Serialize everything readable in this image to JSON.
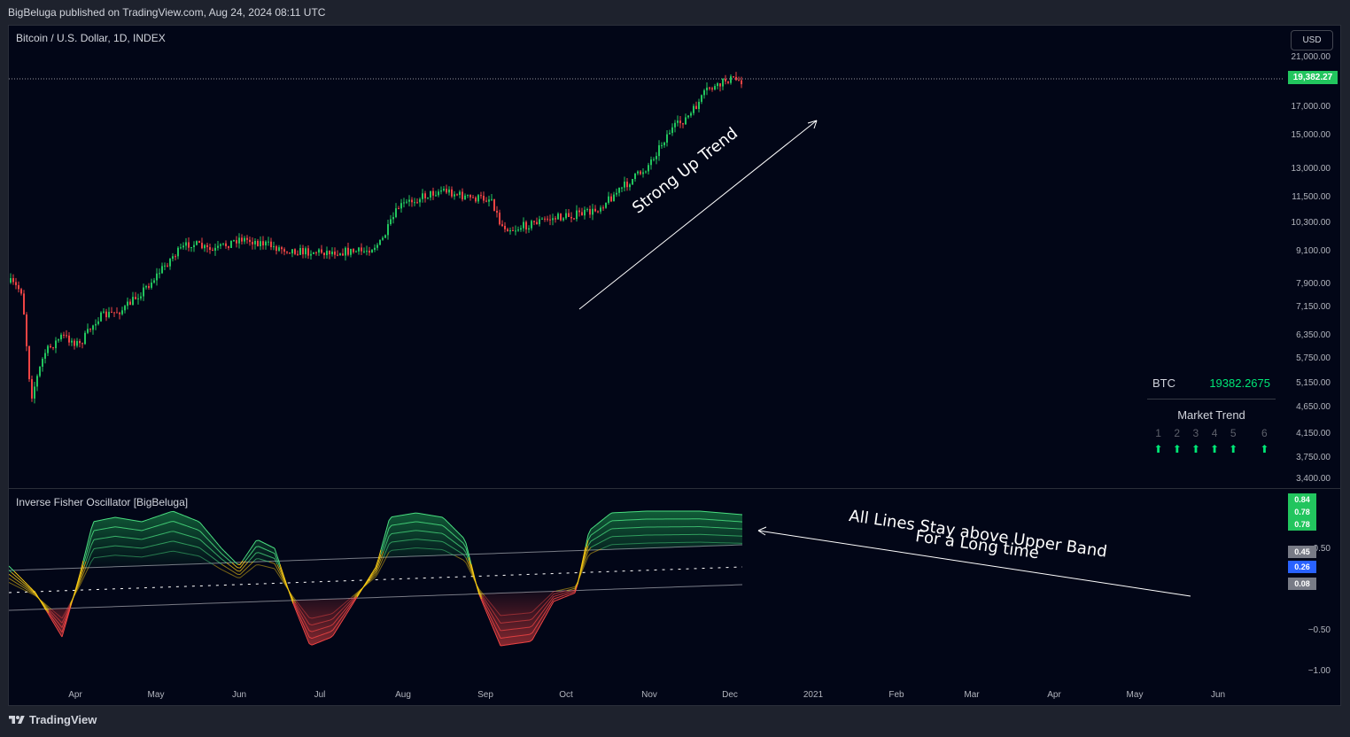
{
  "publisher": "BigBeluga published on TradingView.com, Aug 24, 2024 08:11 UTC",
  "symbol_title": "Bitcoin / U.S. Dollar, 1D, INDEX",
  "currency": "USD",
  "last_price_tag": "19,382.27",
  "price_axis": [
    "21,000.00",
    "17,000.00",
    "15,000.00",
    "13,000.00",
    "11,500.00",
    "10,300.00",
    "9,100.00",
    "7,900.00",
    "7,150.00",
    "6,350.00",
    "5,750.00",
    "5,150.00",
    "4,650.00",
    "4,150.00",
    "3,750.00",
    "3,400.00"
  ],
  "oscillator": {
    "title": "Inverse Fisher Oscillator [BigBeluga]",
    "axis": [
      "0.50",
      "−0.50",
      "−1.00"
    ],
    "tags": [
      {
        "value": "0.84",
        "color": "#22c55e"
      },
      {
        "value": "0.78",
        "color": "#22c55e"
      },
      {
        "value": "0.78",
        "color": "#22c55e"
      },
      {
        "value": "0.45",
        "color": "#787b86"
      },
      {
        "value": "0.26",
        "color": "#2962ff"
      },
      {
        "value": "0.08",
        "color": "#787b86"
      }
    ]
  },
  "time_axis": [
    "Apr",
    "May",
    "Jun",
    "Jul",
    "Aug",
    "Sep",
    "Oct",
    "Nov",
    "Dec",
    "2021",
    "Feb",
    "Mar",
    "Apr",
    "May",
    "Jun"
  ],
  "annotations": {
    "trend": "Strong Up Trend",
    "bands_line1": "All Lines Stay above Upper Band",
    "bands_line2": "For a Long time"
  },
  "btc_panel": {
    "label": "BTC",
    "value": "19382.2675",
    "market_trend_title": "Market Trend",
    "columns": [
      "1",
      "2",
      "3",
      "4",
      "5",
      "6"
    ],
    "arrow_glyph": "⬆"
  },
  "footer_brand": "TradingView",
  "colors": {
    "up": "#22c55e",
    "down": "#ef4444",
    "background": "#020617",
    "accent": "#00e676"
  }
}
